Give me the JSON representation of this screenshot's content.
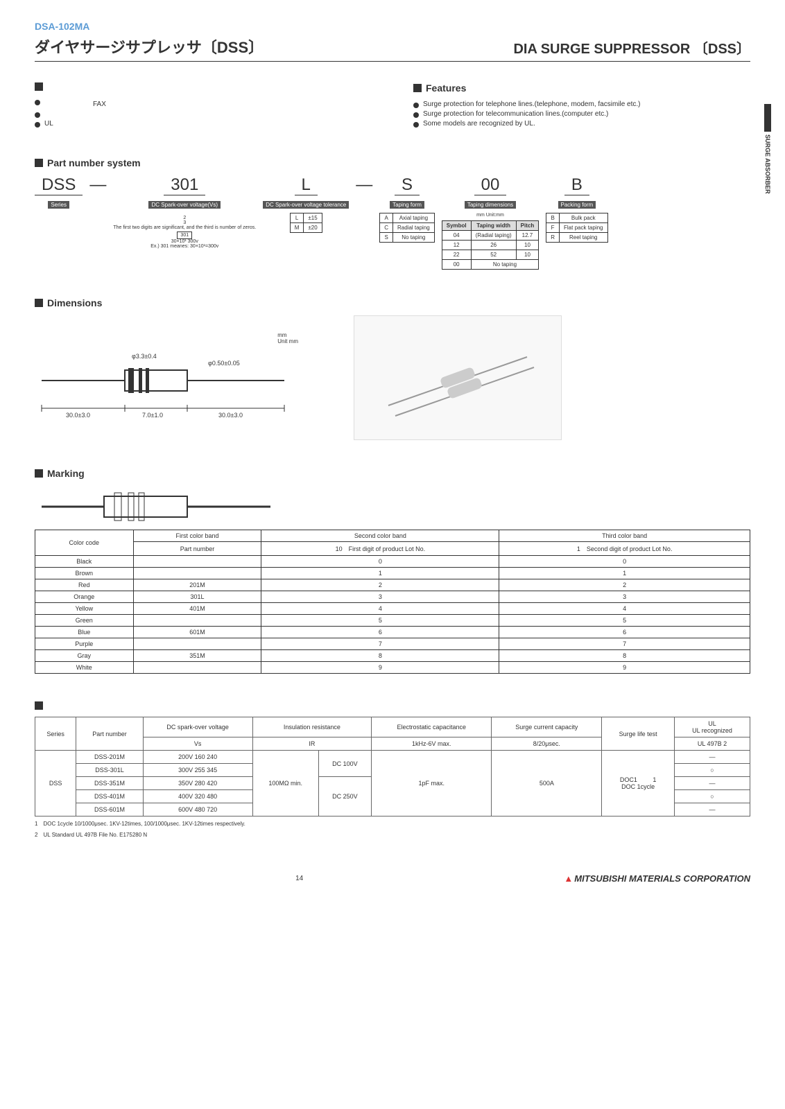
{
  "header": {
    "top_label": "DSA-102MA",
    "title_jp": "ダイヤサージサプレッサ〔DSS〕",
    "title_en": "DIA SURGE SUPPRESSOR 〔DSS〕"
  },
  "sideTab": "SURGE ABSORBER",
  "features_jp": {
    "heading": "",
    "items": [
      "　　　　　　　FAX",
      "",
      "UL"
    ]
  },
  "features_en": {
    "heading": "Features",
    "items": [
      "Surge protection for telephone lines.(telephone, modem, facsimile etc.)",
      "Surge protection for telecommunication lines.(computer etc.)",
      "Some models are recognized by UL."
    ]
  },
  "partNumber": {
    "heading": "Part number system",
    "series": {
      "big": "DSS",
      "label": "Series"
    },
    "voltage": {
      "big": "301",
      "label": "DC Spark-over voltage(Vs)",
      "note1": "2",
      "note2": "3",
      "note3": "The first two digits are significant, and the third is number of zeros.",
      "note4": "301",
      "note5": "30×10¹ 300v",
      "note6": "Ex.) 301 meanes: 30×10¹=300v"
    },
    "tolerance": {
      "big": "L",
      "label": "DC Spark-over voltage tolerance",
      "rows": [
        {
          "sym": "L",
          "val": "±15"
        },
        {
          "sym": "M",
          "val": "±20"
        }
      ]
    },
    "taping_form": {
      "big": "S",
      "label": "Taping form",
      "rows": [
        {
          "sym": "A",
          "val": "Axial taping"
        },
        {
          "sym": "C",
          "val": "Radial taping"
        },
        {
          "sym": "S",
          "val": "No taping"
        }
      ]
    },
    "taping_dim": {
      "big": "00",
      "label": "Taping dimensions",
      "unit": "mm  Unit:mm",
      "headers": [
        "Symbol",
        "Taping width",
        "Pitch"
      ],
      "rows": [
        {
          "sym": "04",
          "w": "(Radial taping)",
          "p": "12.7"
        },
        {
          "sym": "12",
          "w": "26",
          "p": "10"
        },
        {
          "sym": "22",
          "w": "52",
          "p": "10"
        },
        {
          "sym": "00",
          "w": "No taping",
          "p": ""
        }
      ]
    },
    "packing": {
      "big": "B",
      "label": "Packing form",
      "rows": [
        {
          "sym": "B",
          "val": "Bulk pack"
        },
        {
          "sym": "F",
          "val": "Flat pack taping"
        },
        {
          "sym": "R",
          "val": "Reel taping"
        }
      ]
    }
  },
  "dimensions": {
    "heading": "Dimensions",
    "unit": "mm\nUnit mm",
    "d1": "φ3.3±0.4",
    "d2": "φ0.50±0.05",
    "l1": "30.0±3.0",
    "l2": "7.0±1.0",
    "l3": "30.0±3.0"
  },
  "marking": {
    "heading": "Marking",
    "headers": {
      "color": "Color code",
      "first_top": "First color band",
      "first_bot": "Part number",
      "second_top": "Second color band",
      "second_bot_pre": "10",
      "second_bot": "First digit of product Lot No.",
      "third_top": "Third color band",
      "third_bot_pre": "1",
      "third_bot": "Second digit of product Lot No."
    },
    "rows": [
      {
        "c": "Black",
        "p": "",
        "s": "0",
        "t": "0"
      },
      {
        "c": "Brown",
        "p": "",
        "s": "1",
        "t": "1"
      },
      {
        "c": "Red",
        "p": "201M",
        "s": "2",
        "t": "2"
      },
      {
        "c": "Orange",
        "p": "301L",
        "s": "3",
        "t": "3"
      },
      {
        "c": "Yellow",
        "p": "401M",
        "s": "4",
        "t": "4"
      },
      {
        "c": "Green",
        "p": "",
        "s": "5",
        "t": "5"
      },
      {
        "c": "Blue",
        "p": "601M",
        "s": "6",
        "t": "6"
      },
      {
        "c": "Purple",
        "p": "",
        "s": "7",
        "t": "7"
      },
      {
        "c": "Gray",
        "p": "351M",
        "s": "8",
        "t": "8"
      },
      {
        "c": "White",
        "p": "",
        "s": "9",
        "t": "9"
      }
    ]
  },
  "spec": {
    "headers": {
      "series": "Series",
      "pn": "Part number",
      "vs_top": "DC spark-over voltage",
      "vs_bot": "Vs",
      "ir_top": "Insulation resistance",
      "ir_bot": "IR",
      "cap_top": "Electrostatic capacitance",
      "cap_bot": "1kHz-6V max.",
      "sc_top": "Surge current capacity",
      "sc_bot": "8/20μsec.",
      "life": "Surge life test",
      "ul_top": "UL",
      "ul_mid": "UL recognized",
      "ul_bot": "UL 497B 2"
    },
    "series": "DSS",
    "ir": "100MΩ min.",
    "dc1": "DC 100V",
    "dc2": "DC 250V",
    "cap": "1pF max.",
    "sc": "500A",
    "life": "DOC1         1\nDOC 1cycle",
    "rows": [
      {
        "pn": "DSS-201M",
        "vs": "200V 160 240",
        "ul": "—"
      },
      {
        "pn": "DSS-301L",
        "vs": "300V 255 345",
        "ul": "○"
      },
      {
        "pn": "DSS-351M",
        "vs": "350V 280 420",
        "ul": "—"
      },
      {
        "pn": "DSS-401M",
        "vs": "400V 320 480",
        "ul": "○"
      },
      {
        "pn": "DSS-601M",
        "vs": "600V 480 720",
        "ul": "—"
      }
    ],
    "notes": [
      "1　DOC 1cycle 10/1000μsec. 1KV-12times, 100/1000μsec. 1KV-12times respectively.",
      "2　UL Standard UL 497B File No. E175280 N"
    ]
  },
  "footer": {
    "page": "14",
    "logo": "MITSUBISHI MATERIALS CORPORATION"
  }
}
